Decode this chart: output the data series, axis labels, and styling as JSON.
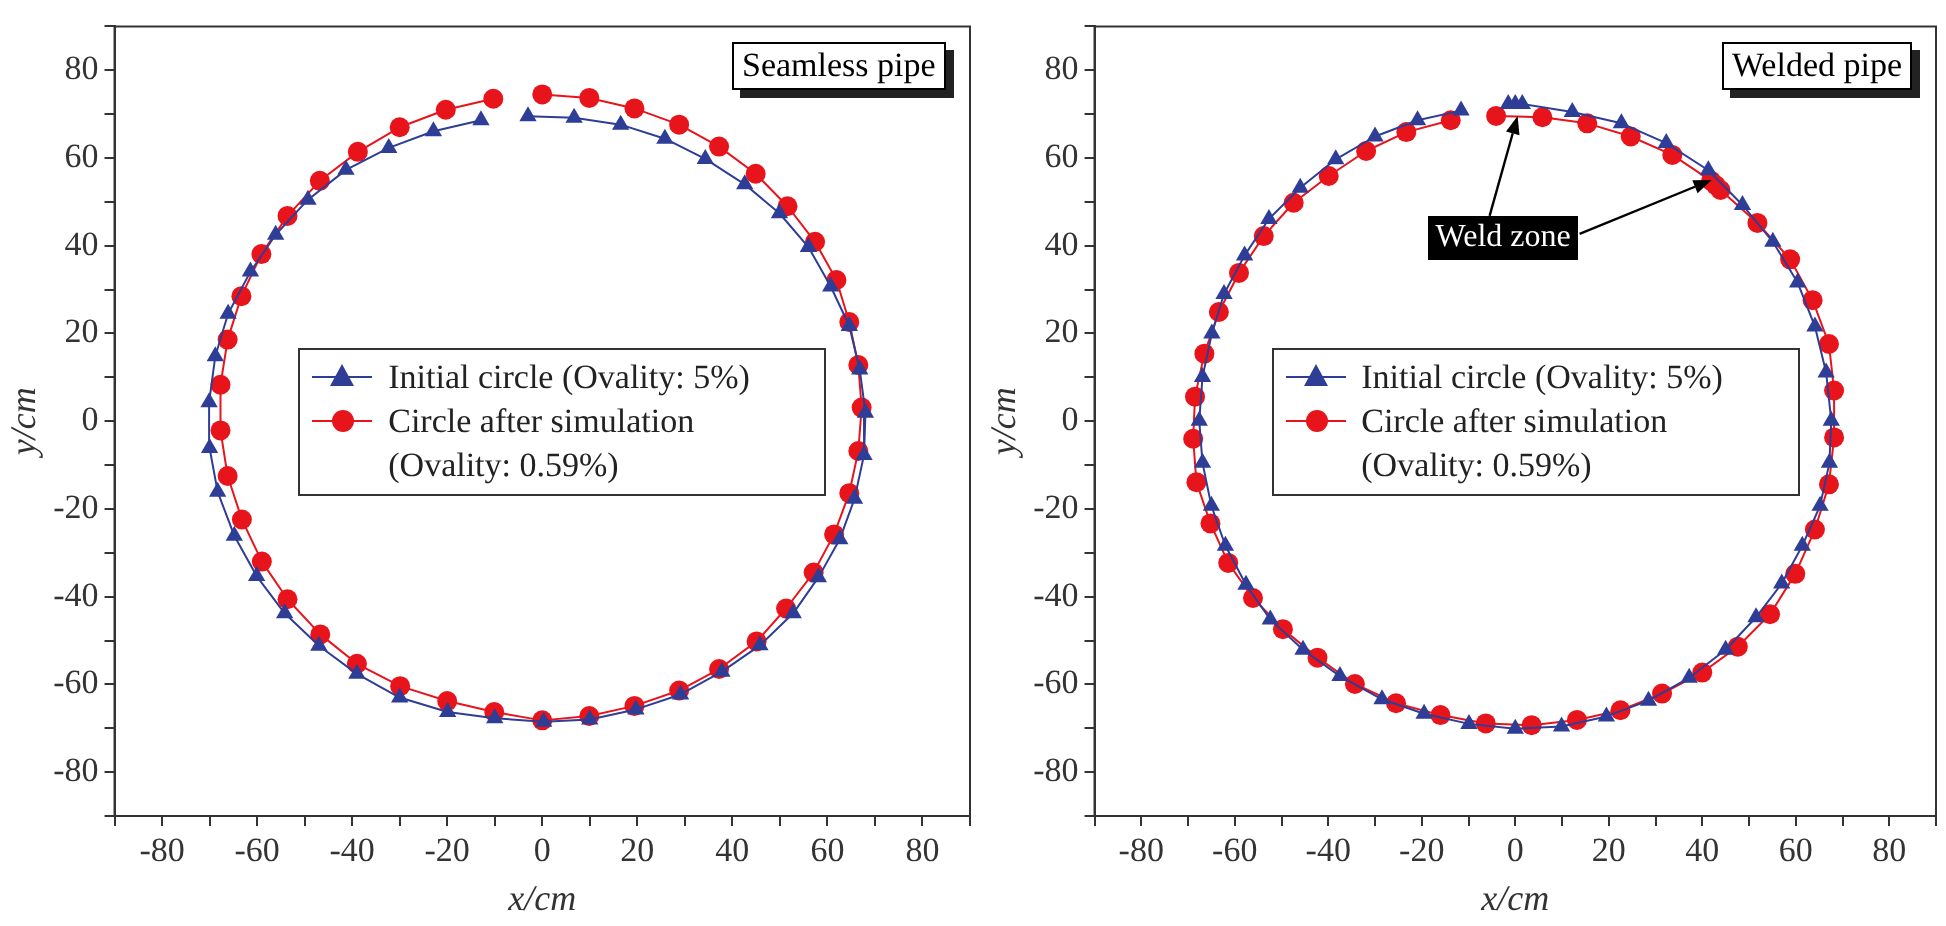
{
  "chart_data": [
    {
      "type": "line",
      "xlabel": "x/cm",
      "ylabel": "y/cm",
      "xlim": [
        -90,
        90
      ],
      "ylim": [
        -90,
        90
      ],
      "xticks": [
        {
          "value": -90,
          "label": null
        },
        -80,
        {
          "value": -70,
          "label": null
        },
        -60,
        {
          "value": -50,
          "label": null
        },
        -40,
        {
          "value": -30,
          "label": null
        },
        -20,
        {
          "value": -10,
          "label": null
        },
        0,
        {
          "value": 10,
          "label": null
        },
        20,
        {
          "value": 30,
          "label": null
        },
        40,
        {
          "value": 50,
          "label": null
        },
        60,
        {
          "value": 70,
          "label": null
        },
        80,
        {
          "value": 90,
          "label": null
        }
      ],
      "yticks": [
        {
          "value": -90,
          "label": null
        },
        -80,
        {
          "value": -70,
          "label": null
        },
        -60,
        {
          "value": -50,
          "label": null
        },
        -40,
        {
          "value": -30,
          "label": null
        },
        -20,
        {
          "value": -10,
          "label": null
        },
        0,
        {
          "value": 10,
          "label": null
        },
        20,
        {
          "value": 30,
          "label": null
        },
        40,
        {
          "value": 50,
          "label": null
        },
        60,
        {
          "value": 70,
          "label": null
        },
        80,
        {
          "value": 90,
          "label": null
        }
      ],
      "legend": "center",
      "annotations": [
        "Seamless pipe"
      ],
      "series": [
        {
          "name": "Initial circle (Ovality: 5%)",
          "color": "#2e3d96",
          "marker": "triangle",
          "x": [
            -3,
            6.7,
            16.5,
            25.8,
            34.3,
            42.6,
            49.9,
            56,
            60.7,
            64.6,
            66.8,
            68,
            67.7,
            65.7,
            62.6,
            58.1,
            52.8,
            45.8,
            37.8,
            29.1,
            19.7,
            10,
            0.3,
            -10,
            -19.9,
            -30,
            -39,
            -47,
            -54.2,
            -60.1,
            -64.8,
            -68.3,
            -70,
            -70.1,
            -68.8,
            -66.1,
            -61.4,
            -56.1,
            -49.3,
            -41.3,
            -32.3,
            -22.9,
            -12.9
          ],
          "values": [
            69.5,
            69.2,
            67.6,
            64.4,
            59.8,
            54,
            47.4,
            39.7,
            30.7,
            21.7,
            11.8,
            1.9,
            -7.7,
            -17.7,
            -26.9,
            -35.6,
            -43.8,
            -51.1,
            -57.1,
            -62.3,
            -65.7,
            -68,
            -68.5,
            -67.7,
            -66.3,
            -63,
            -57.6,
            -51.2,
            -43.8,
            -35.3,
            -26.1,
            -16.1,
            -6.1,
            4.3,
            14.8,
            24.5,
            34.1,
            42.5,
            50.5,
            57.3,
            62.3,
            66.1,
            68.6
          ]
        },
        {
          "name": "Circle after simulation (Ovality: 0.59%)",
          "color": "#e8141c",
          "marker": "circle",
          "x": [
            0,
            9.9,
            19.4,
            28.8,
            37.2,
            44.9,
            51.6,
            57.4,
            61.9,
            64.6,
            66.5,
            67.2,
            66.5,
            64.6,
            61.4,
            57.1,
            51.3,
            45.1,
            37.2,
            28.8,
            19.4,
            9.9,
            0,
            -10.1,
            -20,
            -29.9,
            -39,
            -46.7,
            -53.6,
            -59,
            -63.2,
            -66.2,
            -67.7,
            -67.7,
            -66.2,
            -63.3,
            -59.1,
            -53.6,
            -46.8,
            -38.8,
            -30,
            -20.3,
            -10.3
          ],
          "values": [
            74.5,
            73.7,
            71.3,
            67.6,
            62.6,
            56.4,
            49,
            40.9,
            32.2,
            22.6,
            12.8,
            3.1,
            -6.8,
            -16.4,
            -25.8,
            -34.5,
            -42.7,
            -50.2,
            -56.5,
            -61.4,
            -64.9,
            -67.2,
            -68.2,
            -66.3,
            -63.8,
            -60.4,
            -55.3,
            -48.6,
            -40.6,
            -32,
            -22.4,
            -12.5,
            -2.1,
            8.3,
            18.6,
            28.5,
            38.1,
            46.8,
            54.8,
            61.4,
            67,
            71,
            73.5
          ]
        }
      ]
    },
    {
      "type": "line",
      "xlabel": "x/cm",
      "ylabel": "y/cm",
      "xlim": [
        -90,
        90
      ],
      "ylim": [
        -90,
        90
      ],
      "xticks": [
        {
          "value": -90,
          "label": null
        },
        -80,
        {
          "value": -70,
          "label": null
        },
        -60,
        {
          "value": -50,
          "label": null
        },
        -40,
        {
          "value": -30,
          "label": null
        },
        -20,
        {
          "value": -10,
          "label": null
        },
        0,
        {
          "value": 10,
          "label": null
        },
        20,
        {
          "value": 30,
          "label": null
        },
        40,
        {
          "value": 50,
          "label": null
        },
        60,
        {
          "value": 70,
          "label": null
        },
        80,
        {
          "value": 90,
          "label": null
        }
      ],
      "yticks": [
        {
          "value": -90,
          "label": null
        },
        -80,
        {
          "value": -70,
          "label": null
        },
        -60,
        {
          "value": -50,
          "label": null
        },
        -40,
        {
          "value": -30,
          "label": null
        },
        -20,
        {
          "value": -10,
          "label": null
        },
        0,
        {
          "value": 10,
          "label": null
        },
        20,
        {
          "value": 30,
          "label": null
        },
        40,
        {
          "value": 50,
          "label": null
        },
        60,
        {
          "value": 70,
          "label": null
        },
        80,
        {
          "value": 90,
          "label": null
        }
      ],
      "legend": "center",
      "annotations": [
        "Welded pipe",
        {
          "text": "Weld zone",
          "x": 42,
          "y": 55
        }
      ],
      "series": [
        {
          "name": "Initial circle (Ovality: 5%)",
          "color": "#2e3d96",
          "marker": "triangle",
          "x": [
            -1.5,
            0,
            1.5,
            12.2,
            22.7,
            32.3,
            41.3,
            48.6,
            55.1,
            60.4,
            64.1,
            66.5,
            67.6,
            67.2,
            65.2,
            61.4,
            57,
            51.5,
            45,
            37.2,
            28.5,
            19.5,
            9.9,
            0,
            -9.9,
            -19.5,
            -28.5,
            -37.5,
            -45.4,
            -52.4,
            -57.6,
            -62,
            -65,
            -66.9,
            -67.6,
            -66.9,
            -64.9,
            -62.3,
            -57.9,
            -52.7,
            -46,
            -38.4,
            -30,
            -20.9,
            -11.6
          ],
          "values": [
            72.3,
            72.3,
            72.3,
            70.5,
            67.9,
            63.4,
            57.2,
            49.3,
            40.9,
            31.6,
            21.6,
            11.1,
            0.1,
            -9.5,
            -19.3,
            -28.4,
            -37,
            -44.7,
            -52.1,
            -58.5,
            -63.7,
            -67.3,
            -69.6,
            -70.1,
            -69,
            -66.7,
            -63.4,
            -58.1,
            -52.1,
            -45.2,
            -37.3,
            -28.4,
            -19.3,
            -9.5,
            0.1,
            10.1,
            20,
            29,
            37.8,
            46.1,
            53.2,
            59.7,
            64.9,
            68.6,
            70.8
          ]
        },
        {
          "name": "Circle after simulation (Ovality: 0.59%)",
          "color": "#e8141c",
          "marker": "circle",
          "x": [
            -4.1,
            5.8,
            15.4,
            24.7,
            33.6,
            41.9,
            42.9,
            43.9,
            51.8,
            58.8,
            63.6,
            67.1,
            68.2,
            68.2,
            67.1,
            64.1,
            59.9,
            54.5,
            47.6,
            40,
            31.4,
            22.5,
            13.2,
            3.5,
            -6.3,
            -16,
            -25.5,
            -34.3,
            -42.3,
            -49.7,
            -56.1,
            -61.4,
            -65.2,
            -68.2,
            -68.9,
            -68.5,
            -66.5,
            -63.4,
            -59.1,
            -53.8,
            -47.4,
            -39.9,
            -31.9,
            -23.3,
            -13.8
          ],
          "values": [
            69.6,
            69.3,
            67.9,
            64.9,
            60.7,
            54.8,
            53.8,
            52.7,
            45.2,
            36.9,
            27.6,
            17.6,
            7,
            -3.7,
            -14.4,
            -24.7,
            -34.8,
            -44,
            -51.4,
            -57.3,
            -62.1,
            -65.9,
            -68.1,
            -69.3,
            -68.9,
            -67,
            -64.3,
            -59.9,
            -53.9,
            -47.4,
            -40.3,
            -32.3,
            -23.3,
            -13.9,
            -4,
            5.6,
            15.4,
            24.9,
            33.8,
            42.2,
            49.8,
            55.9,
            61.6,
            65.9,
            68.6
          ]
        }
      ]
    }
  ]
}
